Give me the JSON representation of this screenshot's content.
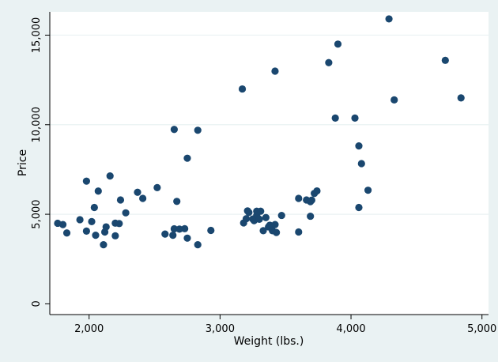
{
  "chart_data": {
    "type": "scatter",
    "xlabel": "Weight (lbs.)",
    "ylabel": "Price",
    "xlim": [
      1700,
      5050
    ],
    "ylim": [
      -600,
      16300
    ],
    "x_ticks": [
      2000,
      3000,
      4000,
      5000
    ],
    "x_tick_labels": [
      "2,000",
      "3,000",
      "4,000",
      "5,000"
    ],
    "y_ticks": [
      0,
      5000,
      10000,
      15000
    ],
    "y_tick_labels": [
      "0",
      "5,000",
      "10,000",
      "15,000"
    ],
    "grid": true,
    "colors": {
      "background": "#eaf2f3",
      "plot_area": "#ffffff",
      "marker": "#1a476f",
      "grid": "#eaf2f3"
    },
    "series": [
      {
        "points": [
          [
            1760,
            4499
          ],
          [
            1800,
            4425
          ],
          [
            1830,
            3955
          ],
          [
            1930,
            4697
          ],
          [
            1980,
            6850
          ],
          [
            1980,
            4060
          ],
          [
            2020,
            4589
          ],
          [
            2040,
            5379
          ],
          [
            2050,
            3829
          ],
          [
            2070,
            6295
          ],
          [
            2110,
            3299
          ],
          [
            2120,
            4010
          ],
          [
            2130,
            4296
          ],
          [
            2160,
            7140
          ],
          [
            2200,
            3798
          ],
          [
            2200,
            4504
          ],
          [
            2230,
            4482
          ],
          [
            2240,
            5799
          ],
          [
            2280,
            5079
          ],
          [
            2370,
            6229
          ],
          [
            2410,
            5886
          ],
          [
            2520,
            6486
          ],
          [
            2580,
            3895
          ],
          [
            2640,
            3829
          ],
          [
            2650,
            9735
          ],
          [
            2650,
            4187
          ],
          [
            2670,
            5719
          ],
          [
            2690,
            4172
          ],
          [
            2730,
            4195
          ],
          [
            2750,
            3667
          ],
          [
            2750,
            8129
          ],
          [
            2830,
            9690
          ],
          [
            2830,
            3299
          ],
          [
            2930,
            4099
          ],
          [
            3170,
            11995
          ],
          [
            3180,
            4516
          ],
          [
            3200,
            4749
          ],
          [
            3210,
            5189
          ],
          [
            3220,
            5104
          ],
          [
            3250,
            4733
          ],
          [
            3260,
            4647
          ],
          [
            3280,
            4934
          ],
          [
            3280,
            5172
          ],
          [
            3300,
            4723
          ],
          [
            3310,
            5172
          ],
          [
            3330,
            4082
          ],
          [
            3350,
            4816
          ],
          [
            3370,
            4296
          ],
          [
            3380,
            4389
          ],
          [
            3400,
            4082
          ],
          [
            3420,
            12990
          ],
          [
            3420,
            4424
          ],
          [
            3430,
            3984
          ],
          [
            3470,
            4934
          ],
          [
            3600,
            5886
          ],
          [
            3600,
            4010
          ],
          [
            3660,
            5798
          ],
          [
            3690,
            4890
          ],
          [
            3690,
            5705
          ],
          [
            3700,
            5788
          ],
          [
            3720,
            6165
          ],
          [
            3740,
            6303
          ],
          [
            3830,
            13466
          ],
          [
            3880,
            10371
          ],
          [
            3900,
            14500
          ],
          [
            4030,
            10372
          ],
          [
            4060,
            8814
          ],
          [
            4060,
            5379
          ],
          [
            4080,
            7827
          ],
          [
            4130,
            6342
          ],
          [
            4290,
            15906
          ],
          [
            4330,
            11385
          ],
          [
            4720,
            13594
          ],
          [
            4840,
            11497
          ]
        ]
      }
    ]
  }
}
